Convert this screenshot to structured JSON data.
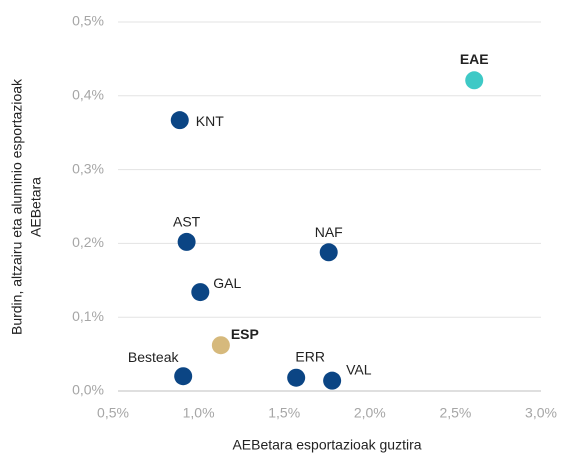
{
  "chart_data": {
    "type": "scatter",
    "x_label": "AEBetara esportazioak guztira",
    "y_label": [
      "Burdin, altzairu eta aluminio esportazioak",
      "AEBetara"
    ],
    "labels": [
      "KNT",
      "EAE",
      "AST",
      "NAF",
      "GAL",
      "ESP",
      "Besteak",
      "ERR",
      "VAL"
    ],
    "x": [
      0.89,
      2.61,
      0.93,
      1.76,
      1.01,
      1.13,
      0.91,
      1.57,
      1.78
    ],
    "values": [
      0.367,
      0.421,
      0.202,
      0.188,
      0.134,
      0.062,
      0.02,
      0.018,
      0.014
    ],
    "colors": [
      "#0b4584",
      "#3ec9c6",
      "#0b4584",
      "#0b4584",
      "#0b4584",
      "#d6b97c",
      "#0b4584",
      "#0b4584",
      "#0b4584"
    ],
    "bold": [
      false,
      true,
      false,
      false,
      false,
      true,
      false,
      false,
      false
    ],
    "xlim": [
      0.5,
      3.0
    ],
    "xticks": [
      {
        "value": 0.5,
        "label": "0,5%"
      },
      {
        "value": 1.0,
        "label": "1,0%"
      },
      {
        "value": 1.5,
        "label": "1,5%"
      },
      {
        "value": 2.0,
        "label": "2,0%"
      },
      {
        "value": 2.5,
        "label": "2,5%"
      },
      {
        "value": 3.0,
        "label": "3,0%"
      }
    ],
    "ylim": [
      0,
      0.5
    ],
    "yticks": [
      {
        "value": 0,
        "label": "0,0%"
      },
      {
        "value": 0.1,
        "label": "0,1%"
      },
      {
        "value": 0.2,
        "label": "0,2%"
      },
      {
        "value": 0.3,
        "label": "0,3%"
      },
      {
        "value": 0.4,
        "label": "0,4%"
      },
      {
        "value": 0.5,
        "label": "0,5%"
      }
    ],
    "grid": true
  }
}
